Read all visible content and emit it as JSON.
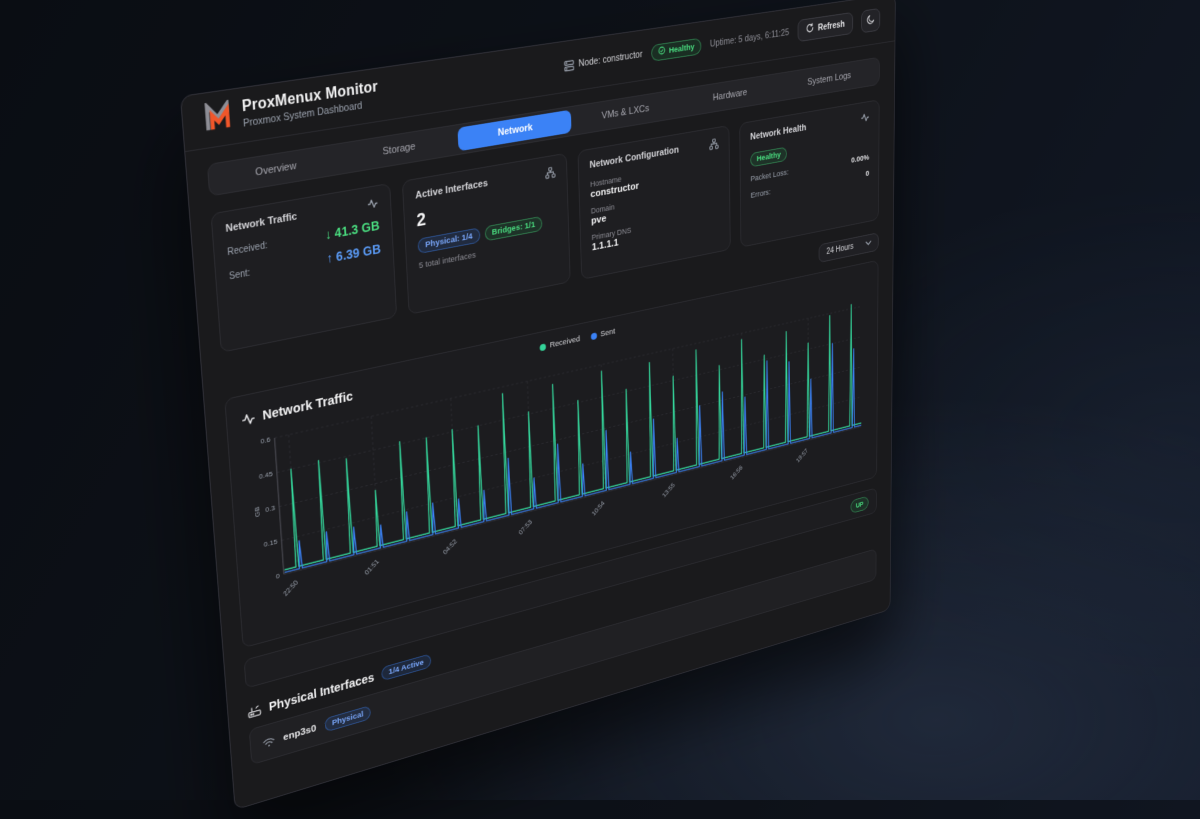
{
  "header": {
    "title": "ProxMenux Monitor",
    "subtitle": "Proxmox System Dashboard"
  },
  "topbar": {
    "node_label": "Node: constructor",
    "health_badge": "Healthy",
    "uptime": "Uptime: 5 days, 6:11:25",
    "refresh_label": "Refresh"
  },
  "tabs": [
    {
      "label": "Overview",
      "active": false
    },
    {
      "label": "Storage",
      "active": false
    },
    {
      "label": "Network",
      "active": true
    },
    {
      "label": "VMs & LXCs",
      "active": false
    },
    {
      "label": "Hardware",
      "active": false
    },
    {
      "label": "System Logs",
      "active": false
    }
  ],
  "cards": {
    "traffic": {
      "title": "Network Traffic",
      "received_label": "Received:",
      "received_value": "↓ 41.3 GB",
      "sent_label": "Sent:",
      "sent_value": "↑ 6.39 GB"
    },
    "interfaces": {
      "title": "Active Interfaces",
      "count": "2",
      "physical_badge": "Physical: 1/4",
      "bridges_badge": "Bridges: 1/1",
      "caption": "5 total interfaces"
    },
    "config": {
      "title": "Network Configuration",
      "hostname_label": "Hostname",
      "hostname_value": "constructor",
      "domain_label": "Domain",
      "domain_value": "pve",
      "dns_label": "Primary DNS",
      "dns_value": "1.1.1.1"
    },
    "health": {
      "title": "Network Health",
      "status_badge": "Healthy",
      "packet_loss_label": "Packet Loss:",
      "packet_loss_value": "0.00%",
      "errors_label": "Errors:",
      "errors_value": "0"
    }
  },
  "time_range": {
    "selected": "24 Hours"
  },
  "chart_section": {
    "title": "Network Traffic"
  },
  "status_row": {
    "state": "UP"
  },
  "physical_section": {
    "title": "Physical Interfaces",
    "active_badge": "1/4 Active",
    "rows": [
      {
        "name": "enp3s0",
        "type_badge": "Physical"
      }
    ]
  },
  "colors": {
    "accent_blue": "#3b82f6",
    "green": "#4ade80",
    "chart_received": "#34d399",
    "chart_sent": "#3b82f6",
    "logo_orange": "#f0562a"
  },
  "chart_data": {
    "type": "line",
    "title": "Network Traffic",
    "ylabel": "GB",
    "ylim": [
      0,
      0.6
    ],
    "yticks": [
      0,
      0.15,
      0.3,
      0.45,
      0.6
    ],
    "xtick_labels": [
      "22:50",
      "01:51",
      "04:52",
      "07:53",
      "10:54",
      "13:55",
      "16:56",
      "19:57"
    ],
    "xtick_every": 3,
    "num_spikes": 24,
    "grid": true,
    "legend_position": "top-center",
    "legend": [
      {
        "name": "Received",
        "color": "#34d399"
      },
      {
        "name": "Sent",
        "color": "#3b82f6"
      }
    ],
    "series": [
      {
        "name": "Received",
        "color": "#34d399",
        "baseline": 0.018,
        "peaks": [
          0.45,
          0.46,
          0.44,
          0.27,
          0.46,
          0.45,
          0.46,
          0.45,
          0.57,
          0.46,
          0.56,
          0.46,
          0.57,
          0.46,
          0.56,
          0.47,
          0.57,
          0.47,
          0.57,
          0.47,
          0.56,
          0.48,
          0.59,
          0.62
        ]
      },
      {
        "name": "Sent",
        "color": "#3b82f6",
        "baseline": 0.007,
        "peaks": [
          0.13,
          0.14,
          0.13,
          0.11,
          0.14,
          0.15,
          0.14,
          0.15,
          0.27,
          0.15,
          0.28,
          0.16,
          0.29,
          0.16,
          0.29,
          0.17,
          0.3,
          0.34,
          0.29,
          0.44,
          0.41,
          0.3,
          0.45,
          0.4
        ]
      }
    ]
  }
}
